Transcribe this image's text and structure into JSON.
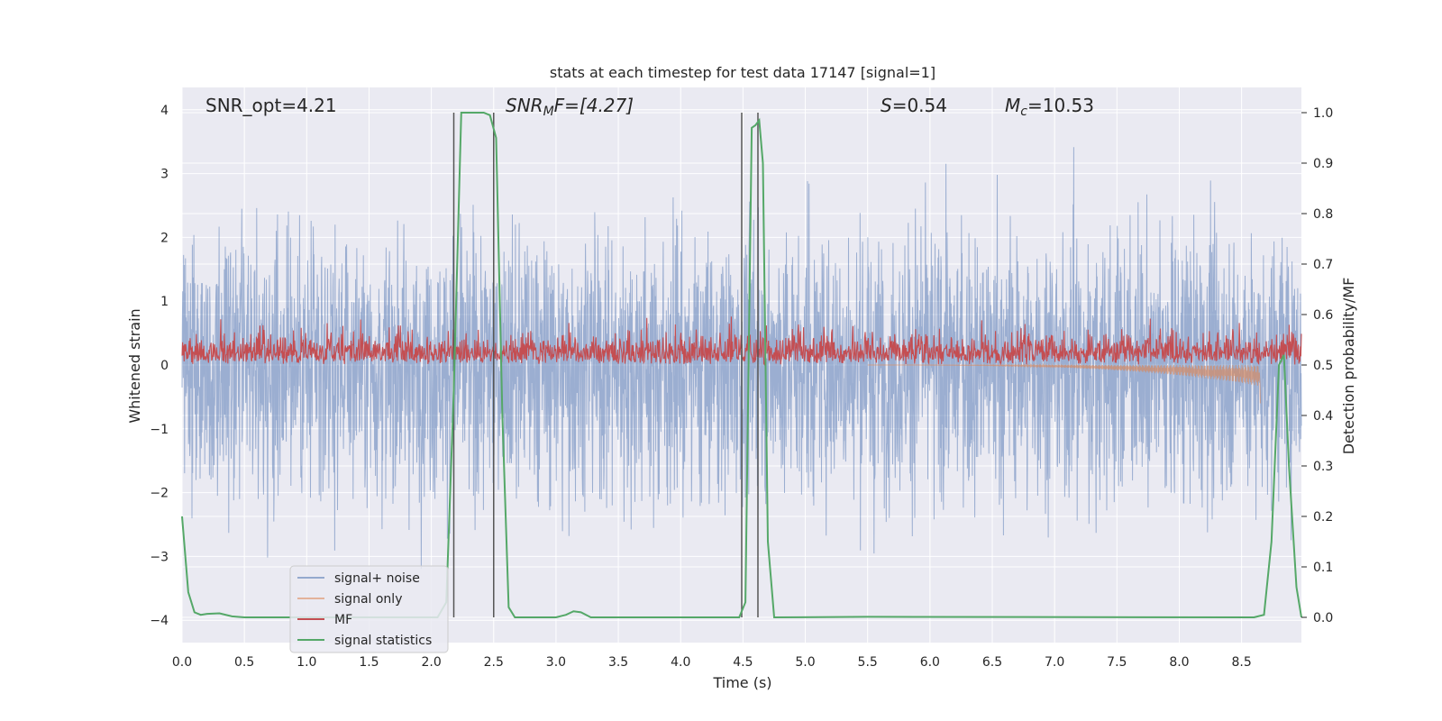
{
  "chart_data": {
    "type": "line",
    "title": "stats at each timestep for test data 17147 [signal=1]",
    "xlabel": "Time (s)",
    "ylabel_left": "Whitened strain",
    "ylabel_right": "Detection probability/MF",
    "xlim": [
      0.0,
      8.98
    ],
    "ylim_left": [
      -4.35,
      4.35
    ],
    "ylim_right": [
      -0.05,
      1.05
    ],
    "xticks": [
      "0.0",
      "0.5",
      "1.0",
      "1.5",
      "2.0",
      "2.5",
      "3.0",
      "3.5",
      "4.0",
      "4.5",
      "5.0",
      "5.5",
      "6.0",
      "6.5",
      "7.0",
      "7.5",
      "8.0",
      "8.5"
    ],
    "yticks_left": [
      "4",
      "3",
      "2",
      "1",
      "0",
      "−1",
      "−2",
      "−3",
      "−4"
    ],
    "yticks_right": [
      "1.0",
      "0.9",
      "0.8",
      "0.7",
      "0.6",
      "0.5",
      "0.4",
      "0.3",
      "0.2",
      "0.1",
      "0.0"
    ],
    "grid": true,
    "annotations": {
      "snr_opt": "SNR_opt=4.21",
      "snr_mf_main": "SNR",
      "snr_mf_sub": "M",
      "snr_mf_rest": "F=[4.27]",
      "s_main": "S",
      "s_rest": "=0.54",
      "mc_main": "M",
      "mc_sub": "c",
      "mc_rest": "=10.53"
    },
    "legend": {
      "position": "lower-left",
      "entries": [
        {
          "label": "signal+ noise",
          "color": "#4c72b0"
        },
        {
          "label": "signal only",
          "color": "#dd8452"
        },
        {
          "label": "MF",
          "color": "#c44e52"
        },
        {
          "label": "signal statistics",
          "color": "#55a868"
        }
      ]
    },
    "colors": {
      "background": "#eaeaf2",
      "grid": "#ffffff",
      "noise": "#4c72b0",
      "signal": "#dd8452",
      "mf": "#c44e52",
      "stats": "#55a868",
      "vline": "#555555"
    },
    "series": {
      "signal_noise": {
        "name": "signal+ noise",
        "mean": 0.0,
        "band_sigma": 1.0,
        "extremes": [
          3.45,
          -3.55
        ]
      },
      "signal_only": {
        "name": "signal only",
        "start_time": 5.5,
        "end_time": 8.65,
        "min_value": -0.6
      },
      "mf": {
        "name": "MF",
        "axis": "right",
        "baseline": 0.5,
        "max_value": 0.61
      },
      "signal_statistics": {
        "name": "signal statistics",
        "axis": "right",
        "x": [
          0.0,
          0.05,
          0.1,
          0.15,
          0.2,
          0.3,
          0.4,
          0.5,
          2.05,
          2.12,
          2.18,
          2.24,
          2.3,
          2.42,
          2.47,
          2.52,
          2.57,
          2.62,
          2.67,
          3.0,
          3.08,
          3.14,
          3.2,
          3.28,
          4.47,
          4.52,
          4.57,
          4.6,
          4.63,
          4.66,
          4.7,
          4.75,
          5.5,
          8.6,
          8.68,
          8.74,
          8.8,
          8.84,
          8.88,
          8.94,
          8.98
        ],
        "y": [
          0.2,
          0.05,
          0.01,
          0.005,
          0.007,
          0.008,
          0.002,
          0.0,
          0.0,
          0.03,
          0.45,
          1.0,
          1.0,
          1.0,
          0.995,
          0.95,
          0.4,
          0.02,
          0.0,
          0.0,
          0.005,
          0.012,
          0.01,
          0.0,
          0.0,
          0.03,
          0.97,
          0.975,
          0.985,
          0.9,
          0.15,
          0.0,
          0.001,
          0.0,
          0.005,
          0.15,
          0.5,
          0.52,
          0.3,
          0.06,
          0.0
        ]
      },
      "vertical_lines": [
        2.18,
        2.5,
        4.49,
        4.62
      ]
    }
  }
}
